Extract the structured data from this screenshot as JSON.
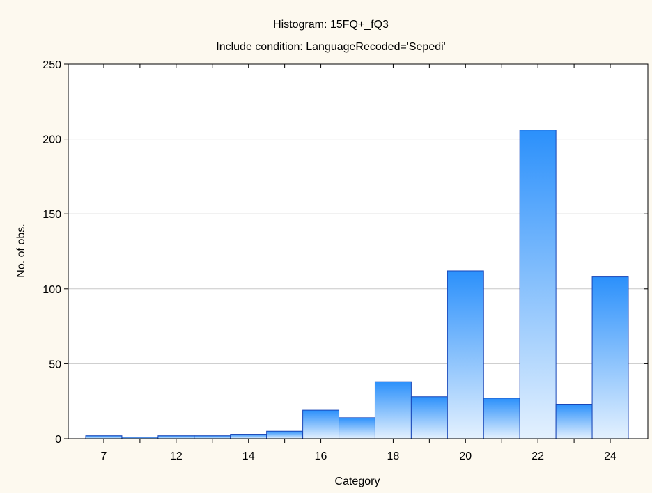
{
  "colors": {
    "page_background": "#fdf9ef",
    "plot_background": "#ffffff",
    "bar_top": "#2b90fb",
    "bar_bottom": "#e4f1fe",
    "bar_stroke": "#1846b8",
    "gridline": "#c8c8c8",
    "axis": "#000000"
  },
  "chart_data": {
    "type": "bar",
    "title": "Histogram: 15FQ+_fQ3",
    "subtitle": "Include condition: LanguageRecoded='Sepedi'",
    "xlabel": "Category",
    "ylabel": "No. of obs.",
    "ylim": [
      0,
      250
    ],
    "yticks": [
      0,
      50,
      100,
      150,
      200,
      250
    ],
    "categories": [
      "7",
      "8",
      "12",
      "13",
      "14",
      "15",
      "16",
      "17",
      "18",
      "19",
      "20",
      "21",
      "22",
      "23",
      "24"
    ],
    "x_tick_labels": [
      "7",
      "",
      "12",
      "",
      "14",
      "",
      "16",
      "",
      "18",
      "",
      "20",
      "",
      "22",
      "",
      "24"
    ],
    "values": [
      2,
      1,
      2,
      2,
      3,
      5,
      19,
      14,
      38,
      28,
      112,
      27,
      206,
      23,
      108
    ],
    "grid": true,
    "grid_axis": "y",
    "legend": "none"
  }
}
